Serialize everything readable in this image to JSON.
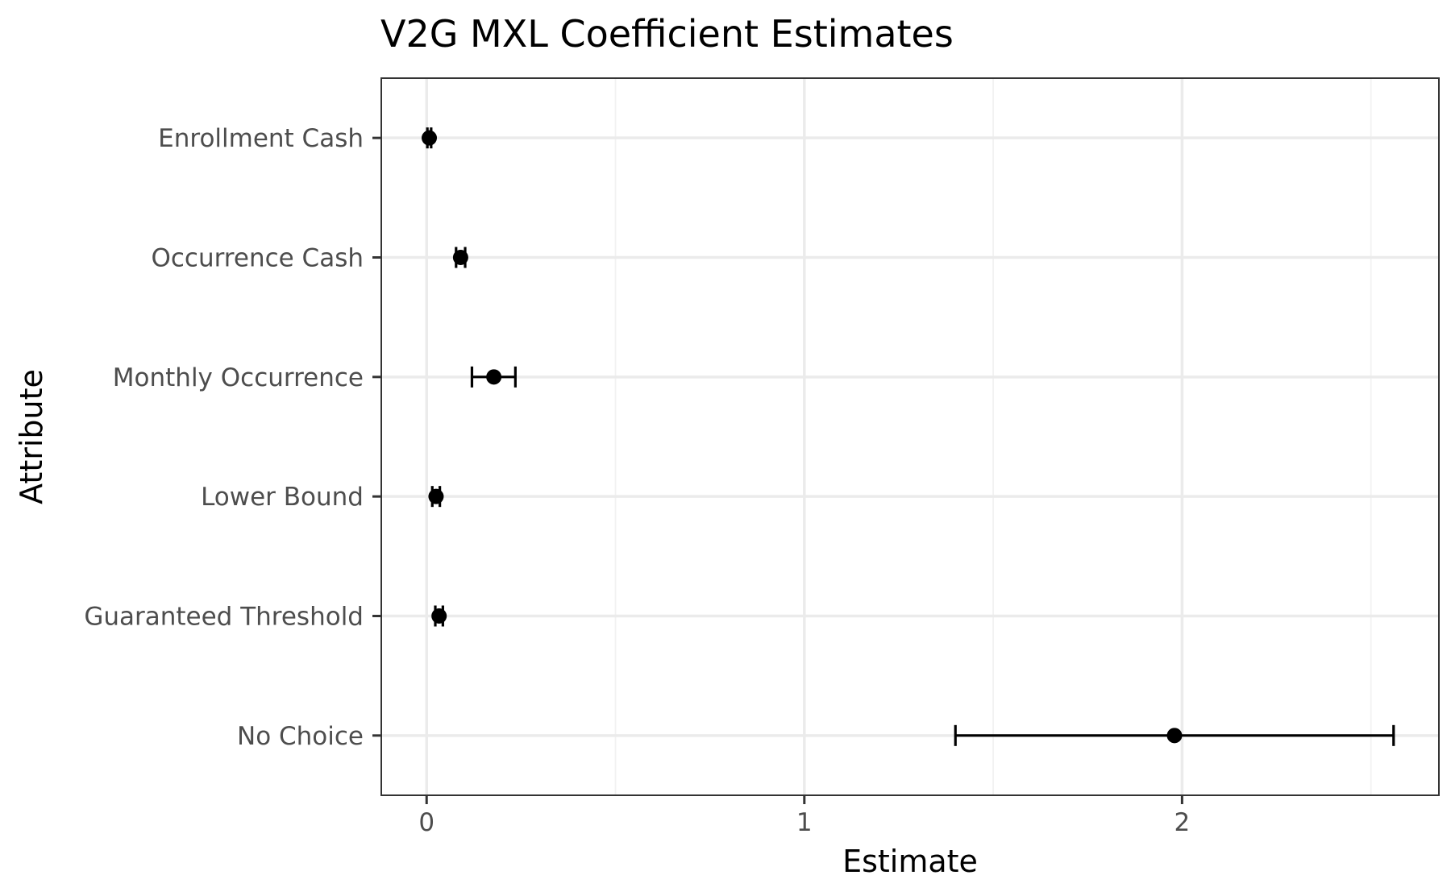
{
  "chart_data": {
    "type": "scatter",
    "subtype": "point-errorbar",
    "title": "V2G MXL Coefficient Estimates",
    "xlabel": "Estimate",
    "ylabel": "Attribute",
    "xlim": [
      -0.12,
      2.68
    ],
    "x_ticks": [
      0,
      1,
      2
    ],
    "x_tick_labels": [
      "0",
      "1",
      "2"
    ],
    "x_minor_ticks": [
      0.5,
      1.5,
      2.5
    ],
    "grid": true,
    "categories": [
      "Enrollment Cash",
      "Occurrence Cash",
      "Monthly Occurrence",
      "Lower Bound",
      "Guaranteed Threshold",
      "No Choice"
    ],
    "points": [
      {
        "attribute": "Enrollment Cash",
        "estimate": 0.007,
        "lower": 0.002,
        "upper": 0.012
      },
      {
        "attribute": "Occurrence Cash",
        "estimate": 0.09,
        "lower": 0.078,
        "upper": 0.102
      },
      {
        "attribute": "Monthly Occurrence",
        "estimate": 0.178,
        "lower": 0.12,
        "upper": 0.235
      },
      {
        "attribute": "Lower Bound",
        "estimate": 0.025,
        "lower": 0.015,
        "upper": 0.035
      },
      {
        "attribute": "Guaranteed Threshold",
        "estimate": 0.033,
        "lower": 0.023,
        "upper": 0.043
      },
      {
        "attribute": "No Choice",
        "estimate": 1.98,
        "lower": 1.4,
        "upper": 2.56
      }
    ],
    "colors": {
      "point": "#000000",
      "errorbar": "#000000",
      "grid_major": "#ebebeb",
      "grid_minor": "#f2f2f2",
      "panel_border": "#333333",
      "tick_label": "#4d4d4d"
    }
  }
}
